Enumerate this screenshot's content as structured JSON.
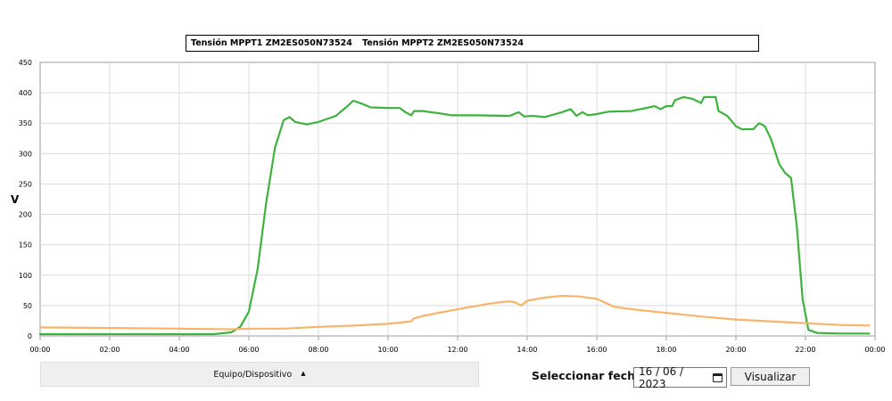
{
  "chart_data": {
    "type": "line",
    "ylabel": "V",
    "xlabel": "",
    "ylim": [
      0,
      450
    ],
    "xlim": [
      "00:00",
      "00:00"
    ],
    "x_ticks": [
      "00:00",
      "02:00",
      "04:00",
      "06:00",
      "08:00",
      "10:00",
      "12:00",
      "14:00",
      "16:00",
      "18:00",
      "20:00",
      "22:00",
      "00:00"
    ],
    "y_ticks": [
      0,
      50,
      100,
      150,
      200,
      250,
      300,
      350,
      400,
      450
    ],
    "grid": true,
    "legend": "top",
    "series": [
      {
        "name": "Tensión MPPT1 ZM2ES050N73524",
        "color": "#3db33d",
        "points": [
          [
            "00:00",
            3
          ],
          [
            "03:00",
            3
          ],
          [
            "05:00",
            3
          ],
          [
            "05:30",
            6
          ],
          [
            "05:45",
            15
          ],
          [
            "06:00",
            40
          ],
          [
            "06:15",
            110
          ],
          [
            "06:30",
            220
          ],
          [
            "06:45",
            310
          ],
          [
            "07:00",
            355
          ],
          [
            "07:10",
            360
          ],
          [
            "07:20",
            352
          ],
          [
            "07:40",
            348
          ],
          [
            "08:00",
            352
          ],
          [
            "08:30",
            362
          ],
          [
            "08:50",
            378
          ],
          [
            "09:00",
            387
          ],
          [
            "09:15",
            382
          ],
          [
            "09:30",
            376
          ],
          [
            "10:00",
            375
          ],
          [
            "10:20",
            375
          ],
          [
            "10:30",
            368
          ],
          [
            "10:40",
            363
          ],
          [
            "10:45",
            370
          ],
          [
            "11:00",
            370
          ],
          [
            "11:30",
            366
          ],
          [
            "11:50",
            363
          ],
          [
            "12:30",
            363
          ],
          [
            "13:30",
            362
          ],
          [
            "13:45",
            368
          ],
          [
            "13:55",
            361
          ],
          [
            "14:10",
            362
          ],
          [
            "14:30",
            360
          ],
          [
            "15:00",
            368
          ],
          [
            "15:15",
            373
          ],
          [
            "15:25",
            362
          ],
          [
            "15:35",
            368
          ],
          [
            "15:45",
            363
          ],
          [
            "16:00",
            365
          ],
          [
            "16:20",
            369
          ],
          [
            "17:00",
            370
          ],
          [
            "17:30",
            376
          ],
          [
            "17:40",
            378
          ],
          [
            "17:50",
            373
          ],
          [
            "18:00",
            378
          ],
          [
            "18:10",
            378
          ],
          [
            "18:15",
            388
          ],
          [
            "18:30",
            393
          ],
          [
            "18:45",
            390
          ],
          [
            "19:00",
            383
          ],
          [
            "19:05",
            393
          ],
          [
            "19:25",
            393
          ],
          [
            "19:30",
            370
          ],
          [
            "19:45",
            362
          ],
          [
            "20:00",
            345
          ],
          [
            "20:10",
            340
          ],
          [
            "20:30",
            340
          ],
          [
            "20:40",
            350
          ],
          [
            "20:50",
            345
          ],
          [
            "21:00",
            325
          ],
          [
            "21:15",
            282
          ],
          [
            "21:25",
            268
          ],
          [
            "21:35",
            260
          ],
          [
            "21:45",
            180
          ],
          [
            "21:55",
            60
          ],
          [
            "22:05",
            10
          ],
          [
            "22:20",
            5
          ],
          [
            "23:00",
            4
          ],
          [
            "23:50",
            4
          ]
        ]
      },
      {
        "name": "Tensión MPPT2 ZM2ES050N73524",
        "color": "#f7b46a",
        "points": [
          [
            "00:00",
            14
          ],
          [
            "02:00",
            13
          ],
          [
            "04:00",
            12
          ],
          [
            "05:30",
            11
          ],
          [
            "06:00",
            12
          ],
          [
            "07:00",
            12
          ],
          [
            "08:00",
            15
          ],
          [
            "09:00",
            17
          ],
          [
            "10:00",
            20
          ],
          [
            "10:40",
            24
          ],
          [
            "10:45",
            29
          ],
          [
            "11:00",
            33
          ],
          [
            "12:00",
            44
          ],
          [
            "13:00",
            54
          ],
          [
            "13:30",
            57
          ],
          [
            "13:40",
            55
          ],
          [
            "13:50",
            50
          ],
          [
            "14:00",
            58
          ],
          [
            "14:30",
            63
          ],
          [
            "15:00",
            66
          ],
          [
            "15:30",
            65
          ],
          [
            "16:00",
            61
          ],
          [
            "16:30",
            48
          ],
          [
            "17:00",
            44
          ],
          [
            "18:00",
            38
          ],
          [
            "19:00",
            32
          ],
          [
            "20:00",
            27
          ],
          [
            "21:00",
            24
          ],
          [
            "22:00",
            21
          ],
          [
            "23:00",
            18
          ],
          [
            "23:50",
            17
          ]
        ]
      }
    ]
  },
  "controls": {
    "device_label": "Equipo/Dispositivo",
    "date_label": "Seleccionar fecha",
    "date_value": "16 / 06 / 2023",
    "view_button": "Visualizar"
  }
}
